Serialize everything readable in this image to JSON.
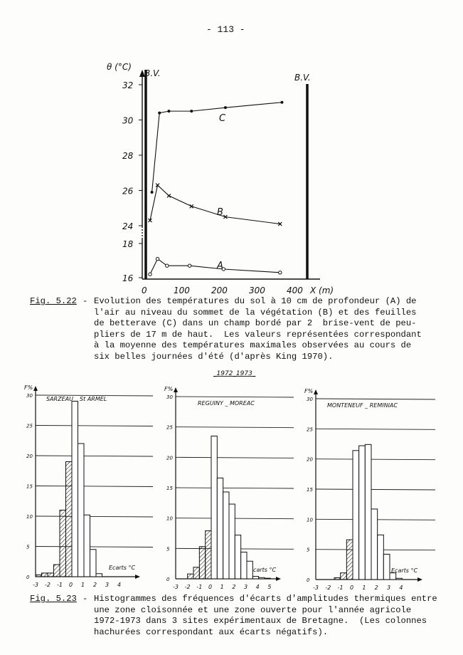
{
  "page_number": "- 113 -",
  "fig522": {
    "label": "Fig. 5.22",
    "caption_lines": [
      "Evolution des températures du sol à 10 cm de profondeur (A) de",
      "l'air au niveau du sommet de la végétation (B) et des feuilles",
      "de betterave (C) dans un champ bordé par 2  brise-vent de peu-",
      "pliers de 17 m de haut.  Les valeurs représentées correspondant",
      "à la moyenne des températures maximales observées au cours de",
      "six belles journées d'été (d'après King 1970)."
    ]
  },
  "fig523": {
    "label": "Fig. 5.23",
    "caption_lines": [
      "Histogrammes des fréquences d'écarts d'amplitudes thermiques entre",
      "une zone cloisonnée et une zone ouverte pour l'année agricole",
      "1972-1973 dans 3 sites expérimentaux de Bretagne.  (Les colonnes",
      "hachurées correspondant aux écarts négatifs)."
    ],
    "period_label": "_1972_1973_"
  },
  "chart_data": [
    {
      "type": "line",
      "ylabel": "θ (°C)",
      "xlabel": "X (m)",
      "annotations": [
        "B.V.",
        "B.V."
      ],
      "windbreak_positions_m": [
        0,
        450
      ],
      "y_ticks": [
        16,
        18,
        24,
        26,
        28,
        30,
        32
      ],
      "y_axis_break": [
        18,
        24
      ],
      "x_ticks": [
        0,
        100,
        200,
        300,
        400
      ],
      "xlim": [
        0,
        480
      ],
      "series": [
        {
          "name": "A",
          "marker": "circle",
          "x": [
            15,
            35,
            60,
            120,
            210,
            360
          ],
          "y": [
            16.2,
            17.1,
            16.7,
            16.7,
            16.5,
            16.3
          ]
        },
        {
          "name": "B",
          "marker": "cross",
          "x": [
            15,
            35,
            65,
            125,
            215,
            360
          ],
          "y": [
            24.3,
            26.3,
            25.7,
            25.1,
            24.5,
            24.1
          ]
        },
        {
          "name": "C",
          "marker": "dot",
          "x": [
            20,
            40,
            65,
            125,
            215,
            365
          ],
          "y": [
            25.9,
            30.4,
            30.5,
            30.5,
            30.7,
            31.0
          ]
        }
      ]
    },
    {
      "type": "bar",
      "title": "SARZEAU _ St ARMEL",
      "ylabel": "F%",
      "xlabel": "Ecarts °C",
      "ylim": [
        0,
        30
      ],
      "y_ticks": [
        0,
        5,
        10,
        15,
        20,
        25,
        30
      ],
      "x_ticks": [
        -3,
        -2,
        -1,
        0,
        1,
        2,
        3,
        4
      ],
      "bin_width": 0.5,
      "bin_starts": [
        -3,
        -2.5,
        -2,
        -1.5,
        -1,
        -0.5,
        0,
        0.5,
        1,
        1.5,
        2
      ],
      "values": [
        0.3,
        0.6,
        0.6,
        2.0,
        11.0,
        19.0,
        29.0,
        22.0,
        10.2,
        4.5,
        0.5
      ],
      "grid": true
    },
    {
      "type": "bar",
      "title": "REGUINY _ MOREAC",
      "ylabel": "F%",
      "xlabel": "Ecarts °C",
      "ylim": [
        0,
        30
      ],
      "y_ticks": [
        0,
        5,
        10,
        15,
        20,
        25,
        30
      ],
      "x_ticks": [
        -3,
        -2,
        -1,
        0,
        1,
        2,
        3,
        4,
        5
      ],
      "bin_width": 0.5,
      "bin_starts": [
        -2,
        -1.5,
        -1,
        -0.5,
        0,
        0.5,
        1,
        1.5,
        2,
        2.5,
        3,
        3.5,
        4,
        4.5
      ],
      "values": [
        0.8,
        1.9,
        5.3,
        7.9,
        23.5,
        16.6,
        14.3,
        12.3,
        7.2,
        4.4,
        2.9,
        0.4,
        0.2,
        0.1
      ],
      "grid": true
    },
    {
      "type": "bar",
      "title": "MONTENEUF _ REMINIAC",
      "ylabel": "F%",
      "xlabel": "Ecarts °C",
      "ylim": [
        0,
        30
      ],
      "y_ticks": [
        0,
        5,
        10,
        15,
        20,
        25,
        30
      ],
      "x_ticks": [
        -3,
        -2,
        -1,
        0,
        1,
        2,
        3,
        4
      ],
      "bin_width": 0.5,
      "bin_starts": [
        -1.5,
        -1,
        -0.5,
        0,
        0.5,
        1,
        1.5,
        2,
        2.5,
        3,
        3.5
      ],
      "values": [
        0.3,
        1.1,
        6.6,
        21.4,
        22.2,
        22.4,
        11.7,
        7.4,
        4.2,
        1.1,
        0.2
      ],
      "grid": true
    }
  ]
}
